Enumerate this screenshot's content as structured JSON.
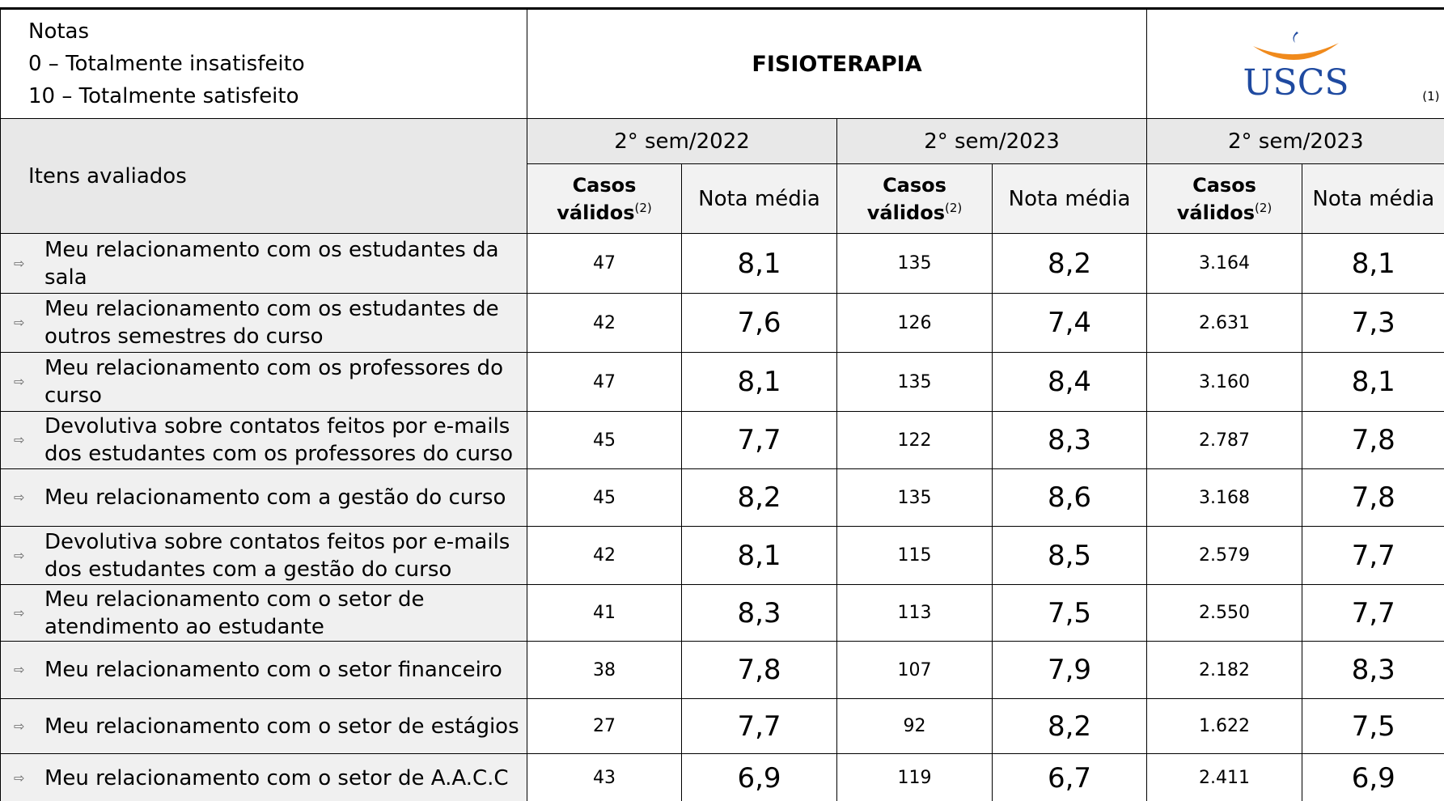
{
  "header": {
    "notes": [
      "Notas",
      "0 – Totalmente insatisfeito",
      "10 – Totalmente satisfeito"
    ],
    "course": "FISIOTERAPIA",
    "logo": "USCS",
    "logo_note": "(1)"
  },
  "table": {
    "items_header": "Itens avaliados",
    "periods": [
      "2° sem/2022",
      "2° sem/2023",
      "2° sem/2023"
    ],
    "cases_label": "Casos válidos",
    "cases_note": "(2)",
    "score_label": "Nota média",
    "rows": [
      [
        "Meu relacionamento com os estudantes da sala",
        "47",
        "8,1",
        "135",
        "8,2",
        "3.164",
        "8,1"
      ],
      [
        "Meu relacionamento com os estudantes de outros semestres do curso",
        "42",
        "7,6",
        "126",
        "7,4",
        "2.631",
        "7,3"
      ],
      [
        "Meu relacionamento com os professores do curso",
        "47",
        "8,1",
        "135",
        "8,4",
        "3.160",
        "8,1"
      ],
      [
        "Devolutiva sobre contatos feitos por e-mails dos estudantes com os professores do curso",
        "45",
        "7,7",
        "122",
        "8,3",
        "2.787",
        "7,8"
      ],
      [
        "Meu relacionamento com a gestão do curso",
        "45",
        "8,2",
        "135",
        "8,6",
        "3.168",
        "7,8"
      ],
      [
        "Devolutiva sobre contatos feitos por e-mails dos estudantes com a gestão do curso",
        "42",
        "8,1",
        "115",
        "8,5",
        "2.579",
        "7,7"
      ],
      [
        "Meu relacionamento com o setor de atendimento ao estudante",
        "41",
        "8,3",
        "113",
        "7,5",
        "2.550",
        "7,7"
      ],
      [
        "Meu relacionamento com o setor financeiro",
        "38",
        "7,8",
        "107",
        "7,9",
        "2.182",
        "8,3"
      ],
      [
        "Meu relacionamento com o setor de estágios",
        "27",
        "7,7",
        "92",
        "8,2",
        "1.622",
        "7,5"
      ],
      [
        "Meu relacionamento com o setor de A.A.C.C",
        "43",
        "6,9",
        "119",
        "6,7",
        "2.411",
        "6,9"
      ]
    ]
  }
}
